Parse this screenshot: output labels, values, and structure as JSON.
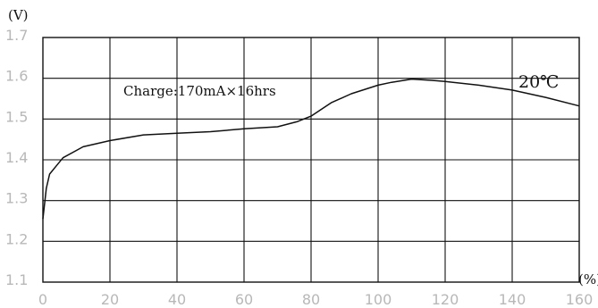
{
  "chart_data": {
    "type": "line",
    "title": "",
    "xlabel": "(%)",
    "ylabel": "(V)",
    "xlim": [
      0,
      160
    ],
    "ylim": [
      1.1,
      1.7
    ],
    "grid": true,
    "x_ticks": [
      0,
      20,
      40,
      60,
      80,
      100,
      120,
      140,
      160
    ],
    "y_ticks": [
      1.1,
      1.2,
      1.3,
      1.4,
      1.5,
      1.6,
      1.7
    ],
    "x_tick_labels": [
      "0",
      "20",
      "40",
      "60",
      "80",
      "100",
      "120",
      "140",
      "160"
    ],
    "y_tick_labels": [
      "1.1",
      "1.2",
      "1.3",
      "1.4",
      "1.5",
      "1.6",
      "1.7"
    ],
    "annotations": [
      "Charge:170mA×16hrs",
      "20℃"
    ],
    "series": [
      {
        "x": [
          0,
          1,
          2,
          4,
          6,
          10,
          12,
          20,
          30,
          40,
          50,
          60,
          70,
          76,
          80,
          86,
          92,
          100,
          104,
          110,
          116,
          120,
          130,
          140,
          150,
          160
        ],
        "y": [
          1.255,
          1.33,
          1.365,
          1.385,
          1.405,
          1.423,
          1.432,
          1.447,
          1.461,
          1.465,
          1.469,
          1.476,
          1.481,
          1.494,
          1.507,
          1.54,
          1.562,
          1.583,
          1.59,
          1.598,
          1.595,
          1.592,
          1.583,
          1.571,
          1.553,
          1.532
        ]
      }
    ]
  }
}
